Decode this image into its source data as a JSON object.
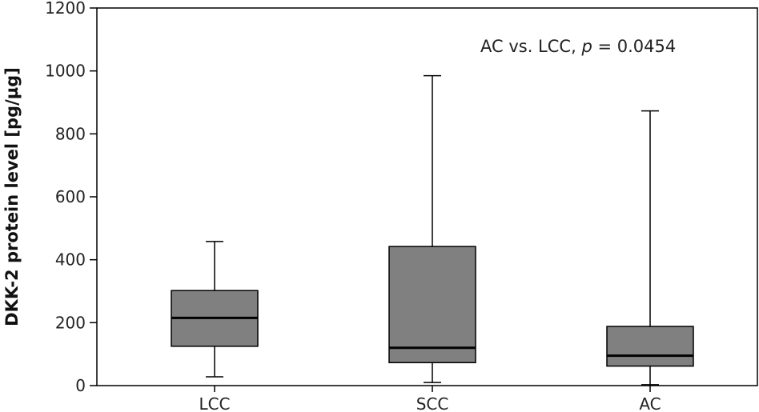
{
  "chart_data": {
    "type": "box",
    "ylabel": "DKK-2 protein level [pg/µg]",
    "ylim": [
      0,
      1200
    ],
    "yticks": [
      0,
      200,
      400,
      600,
      800,
      1000,
      1200
    ],
    "categories": [
      "LCC",
      "SCC",
      "AC"
    ],
    "boxes": [
      {
        "category": "LCC",
        "min": 28,
        "q1": 125,
        "median": 215,
        "q3": 302,
        "max": 458
      },
      {
        "category": "SCC",
        "min": 10,
        "q1": 73,
        "median": 120,
        "q3": 442,
        "max": 985
      },
      {
        "category": "AC",
        "min": 3,
        "q1": 62,
        "median": 95,
        "q3": 188,
        "max": 873
      }
    ],
    "annotation": {
      "prefix": "AC vs. LCC, ",
      "italic": "p",
      "suffix": " = 0.0454"
    },
    "box_color": "#808080",
    "grid": false
  }
}
